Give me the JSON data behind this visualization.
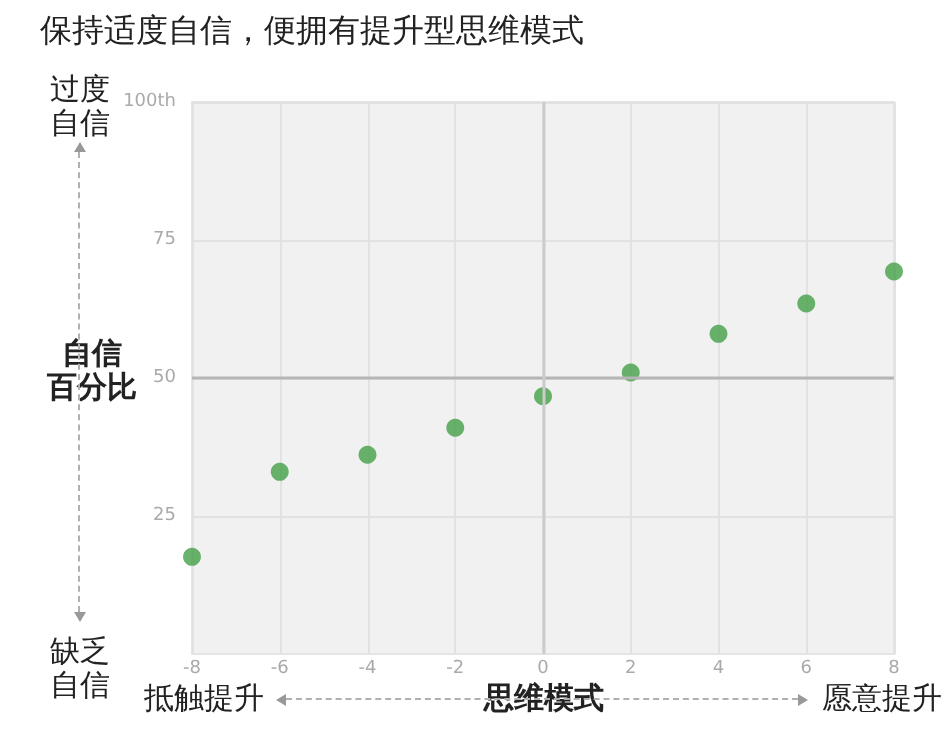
{
  "chart_data": {
    "type": "scatter",
    "title": "保持适度自信，便拥有提升型思维模式",
    "xlabel": "思维模式",
    "ylabel": "自信百分比",
    "x": [
      -8,
      -6,
      -4,
      -2,
      0,
      2,
      4,
      6,
      8
    ],
    "values": [
      17.6,
      33,
      36.1,
      41,
      46.7,
      51,
      58,
      63.5,
      69.3
    ],
    "color": "#43a047",
    "marker": "circle",
    "grid": true,
    "xlim": [
      -8,
      8
    ],
    "xticks": [
      -8,
      -6,
      -4,
      -2,
      0,
      2,
      4,
      6,
      8
    ],
    "ylim": [
      0,
      100
    ],
    "yticks": [
      25,
      50,
      75,
      {
        "value": 100,
        "label": "100th"
      }
    ],
    "ref_lines": [
      {
        "axis": "y",
        "value": 50,
        "color": "#b5b5b5"
      },
      {
        "axis": "x",
        "value": 0,
        "color": "#cccccc"
      }
    ],
    "annotations": [
      "过度自信",
      "缺乏自信",
      "抵触提升",
      "愿意提升"
    ]
  }
}
